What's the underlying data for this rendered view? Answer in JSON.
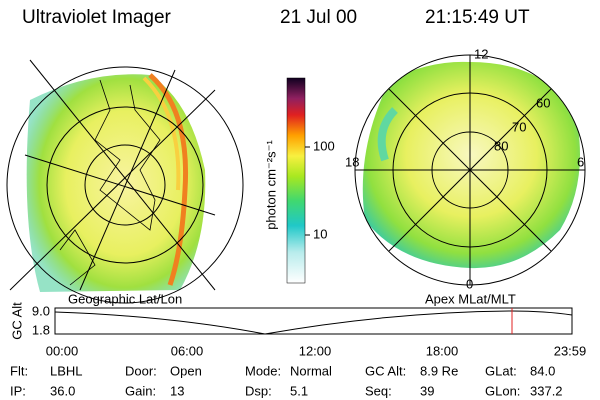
{
  "header": {
    "title": "Ultraviolet Imager",
    "date": "21 Jul 00",
    "time": "21:15:49 UT"
  },
  "left_panel": {
    "label": "Geographic Lat/Lon"
  },
  "colorbar": {
    "label": "photon cm⁻²s⁻¹",
    "ticks": [
      "100",
      "10"
    ]
  },
  "right_panel": {
    "label": "Apex MLat/MLT",
    "mlt_labels": [
      "12",
      "18",
      "6",
      "0"
    ],
    "mlat_labels": [
      "80",
      "70",
      "60"
    ]
  },
  "altitude_plot": {
    "axis_label": "GC Alt",
    "yticks": [
      "9.0",
      "1.8"
    ],
    "xticks": [
      "00:00",
      "06:00",
      "12:00",
      "18:00",
      "23:59"
    ]
  },
  "info": {
    "rows": [
      [
        {
          "label": "Flt:",
          "value": "LBHL"
        },
        {
          "label": "Door:",
          "value": "Open"
        },
        {
          "label": "Mode:",
          "value": "Normal"
        },
        {
          "label": "GC Alt:",
          "value": "8.9 Re"
        },
        {
          "label": "GLat:",
          "value": "84.0"
        }
      ],
      [
        {
          "label": "IP:",
          "value": "36.0"
        },
        {
          "label": "Gain:",
          "value": "13"
        },
        {
          "label": "Dsp:",
          "value": "5.1"
        },
        {
          "label": "Seq:",
          "value": "39"
        },
        {
          "label": "GLon:",
          "value": "337.2"
        }
      ]
    ]
  }
}
